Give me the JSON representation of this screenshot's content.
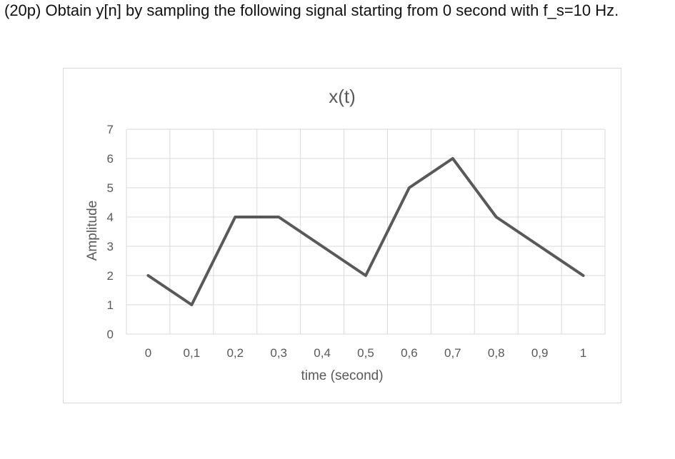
{
  "question": {
    "text": "(20p) Obtain y[n] by sampling the following signal starting from 0 second with f_s=10 Hz."
  },
  "colors": {
    "line": "#595959",
    "grid": "#d9d9d9",
    "text": "#595959"
  },
  "chart_data": {
    "type": "line",
    "title": "x(t)",
    "xlabel": "time (second)",
    "ylabel": "Amplitude",
    "x": [
      0,
      0.1,
      0.2,
      0.3,
      0.4,
      0.5,
      0.6,
      0.7,
      0.8,
      0.9,
      1
    ],
    "x_tick_labels": [
      "0",
      "0,1",
      "0,2",
      "0,3",
      "0,4",
      "0,5",
      "0,6",
      "0,7",
      "0,8",
      "0,9",
      "1"
    ],
    "series": [
      {
        "values": [
          2,
          1,
          4,
          4,
          3,
          2,
          5,
          6,
          4,
          3,
          2
        ]
      }
    ],
    "y_ticks": [
      0,
      1,
      2,
      3,
      4,
      5,
      6,
      7
    ],
    "ylim": [
      0,
      7
    ],
    "grid": true,
    "legend": "none"
  }
}
